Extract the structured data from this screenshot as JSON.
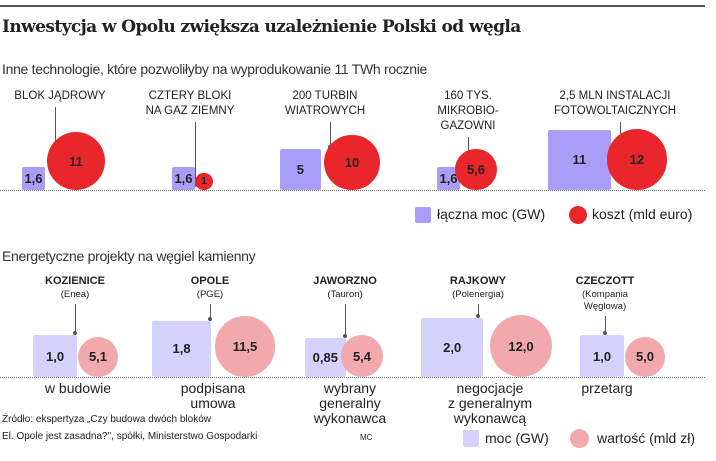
{
  "title": "Inwestycja w Opolu zwiększa uzależnienie Polski od węgla",
  "colors": {
    "top_square": "#a99ef7",
    "top_circle": "#e8262b",
    "bottom_square": "#d4d1fb",
    "bottom_circle": "#f2a9ad"
  },
  "chart_data": [
    {
      "type": "bubble",
      "title": "Inne technologie, które pozwoliłyby na wyprodukowanie 11 TWh rocznie",
      "legend": {
        "square": "łączna moc (GW)",
        "circle": "koszt (mld euro)",
        "placement": "bottom-right"
      },
      "items": [
        {
          "label": [
            "BLOK JĄDROWY"
          ],
          "power": "1,6",
          "cost": "11",
          "power_val": 1.6,
          "cost_val": 11
        },
        {
          "label": [
            "CZTERY BLOKI",
            "NA GAZ ZIEMNY"
          ],
          "power": "1,6",
          "cost": "1",
          "power_val": 1.6,
          "cost_val": 1
        },
        {
          "label": [
            "200 TURBIN",
            "WIATROWYCH"
          ],
          "power": "5",
          "cost": "10",
          "power_val": 5,
          "cost_val": 10
        },
        {
          "label": [
            "160 TYS.",
            "MIKROBIO-",
            "GAZOWNI"
          ],
          "power": "1,6",
          "cost": "5,6",
          "power_val": 1.6,
          "cost_val": 5.6
        },
        {
          "label": [
            "2,5 MLN INSTALACJI",
            "FOTOWOLTAICZNYCH"
          ],
          "power": "11",
          "cost": "12",
          "power_val": 11,
          "cost_val": 12
        }
      ]
    },
    {
      "type": "bubble",
      "title": "Energetyczne projekty na węgiel kamienny",
      "legend": {
        "square": "moc (GW)",
        "circle": "wartość (mld zł)",
        "placement": "bottom-right"
      },
      "items": [
        {
          "label": "KOZIENICE",
          "company": [
            "(Enea)"
          ],
          "power": "1,0",
          "value": "5,1",
          "power_val": 1.0,
          "value_val": 5.1,
          "status": [
            "w budowie"
          ]
        },
        {
          "label": "OPOLE",
          "company": [
            "(PGE)"
          ],
          "power": "1,8",
          "value": "11,5",
          "power_val": 1.8,
          "value_val": 11.5,
          "status": [
            "podpisana",
            "umowa"
          ]
        },
        {
          "label": "JAWORZNO",
          "company": [
            "(Tauron)"
          ],
          "power": "0,85",
          "value": "5,4",
          "power_val": 0.85,
          "value_val": 5.4,
          "status": [
            "wybrany",
            "generalny",
            "wykonawca"
          ]
        },
        {
          "label": "RAJKOWY",
          "company": [
            "(Polenergia)"
          ],
          "power": "2,0",
          "value": "12,0",
          "power_val": 2.0,
          "value_val": 12.0,
          "status": [
            "negocjacje",
            "z generalnym",
            "wykonawcą"
          ]
        },
        {
          "label": "CZECZOTT",
          "company": [
            "(Kompania",
            "Węglowa)"
          ],
          "power": "1,0",
          "value": "5,0",
          "power_val": 1.0,
          "value_val": 5.0,
          "status": [
            "przetarg"
          ]
        }
      ]
    }
  ],
  "source": [
    "Źródło: ekspertyza „Czy budowa dwóch bloków",
    "El. Opole jest zasadna?\", spółki, Ministerstwo Gospodarki"
  ],
  "author": "MC"
}
